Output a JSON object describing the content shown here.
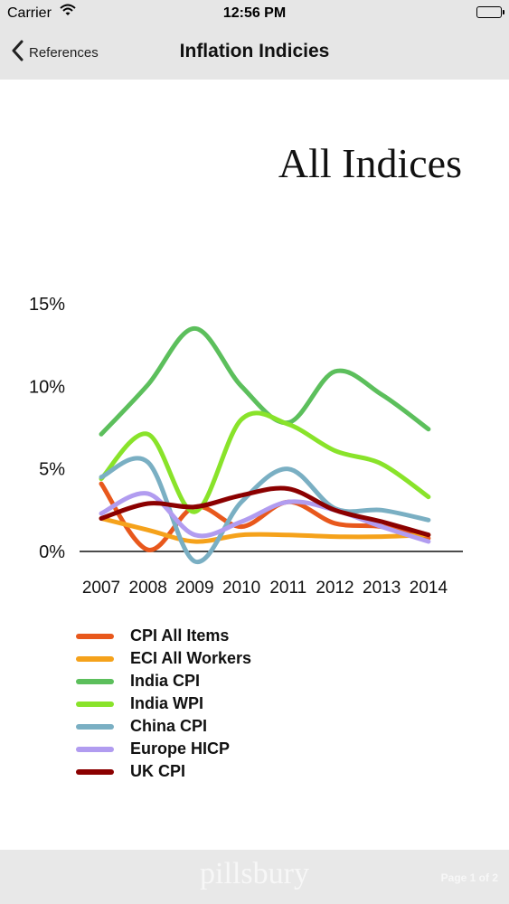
{
  "status_bar": {
    "carrier": "Carrier",
    "time": "12:56 PM"
  },
  "nav": {
    "back_label": "References",
    "title": "Inflation Indicies"
  },
  "chart_data": {
    "type": "line",
    "title": "All Indices",
    "categories": [
      "2007",
      "2008",
      "2009",
      "2010",
      "2011",
      "2012",
      "2013",
      "2014"
    ],
    "y_ticks": [
      "15%",
      "10%",
      "5%",
      "0%"
    ],
    "ylim": [
      0,
      15
    ],
    "grid": false,
    "legend_position": "bottom-left",
    "series": [
      {
        "name": "CPI All Items",
        "color": "#e8581c",
        "values": [
          4.1,
          0.1,
          2.7,
          1.5,
          3.0,
          1.7,
          1.5,
          0.8
        ]
      },
      {
        "name": "ECI All Workers",
        "color": "#f5a21b",
        "values": [
          2.0,
          1.3,
          0.6,
          1.0,
          1.0,
          0.9,
          0.9,
          1.0
        ]
      },
      {
        "name": "India CPI",
        "color": "#5cbf5c",
        "values": [
          7.1,
          10.1,
          13.5,
          10.0,
          7.8,
          10.9,
          9.5,
          7.4
        ]
      },
      {
        "name": "India WPI",
        "color": "#89e32a",
        "values": [
          4.4,
          7.1,
          2.4,
          8.0,
          7.7,
          6.1,
          5.3,
          3.3
        ]
      },
      {
        "name": "China CPI",
        "color": "#7aafc3",
        "values": [
          4.5,
          5.4,
          -0.6,
          3.0,
          5.0,
          2.6,
          2.5,
          1.9
        ]
      },
      {
        "name": "Europe HICP",
        "color": "#b19cf0",
        "values": [
          2.3,
          3.5,
          1.0,
          1.8,
          3.0,
          2.5,
          1.5,
          0.6
        ]
      },
      {
        "name": "UK CPI",
        "color": "#8b0000",
        "values": [
          2.0,
          2.9,
          2.7,
          3.4,
          3.8,
          2.5,
          1.8,
          1.0
        ]
      }
    ]
  },
  "footer": {
    "logo": "pillsbury",
    "page_indicator": "Page 1 of 2"
  }
}
